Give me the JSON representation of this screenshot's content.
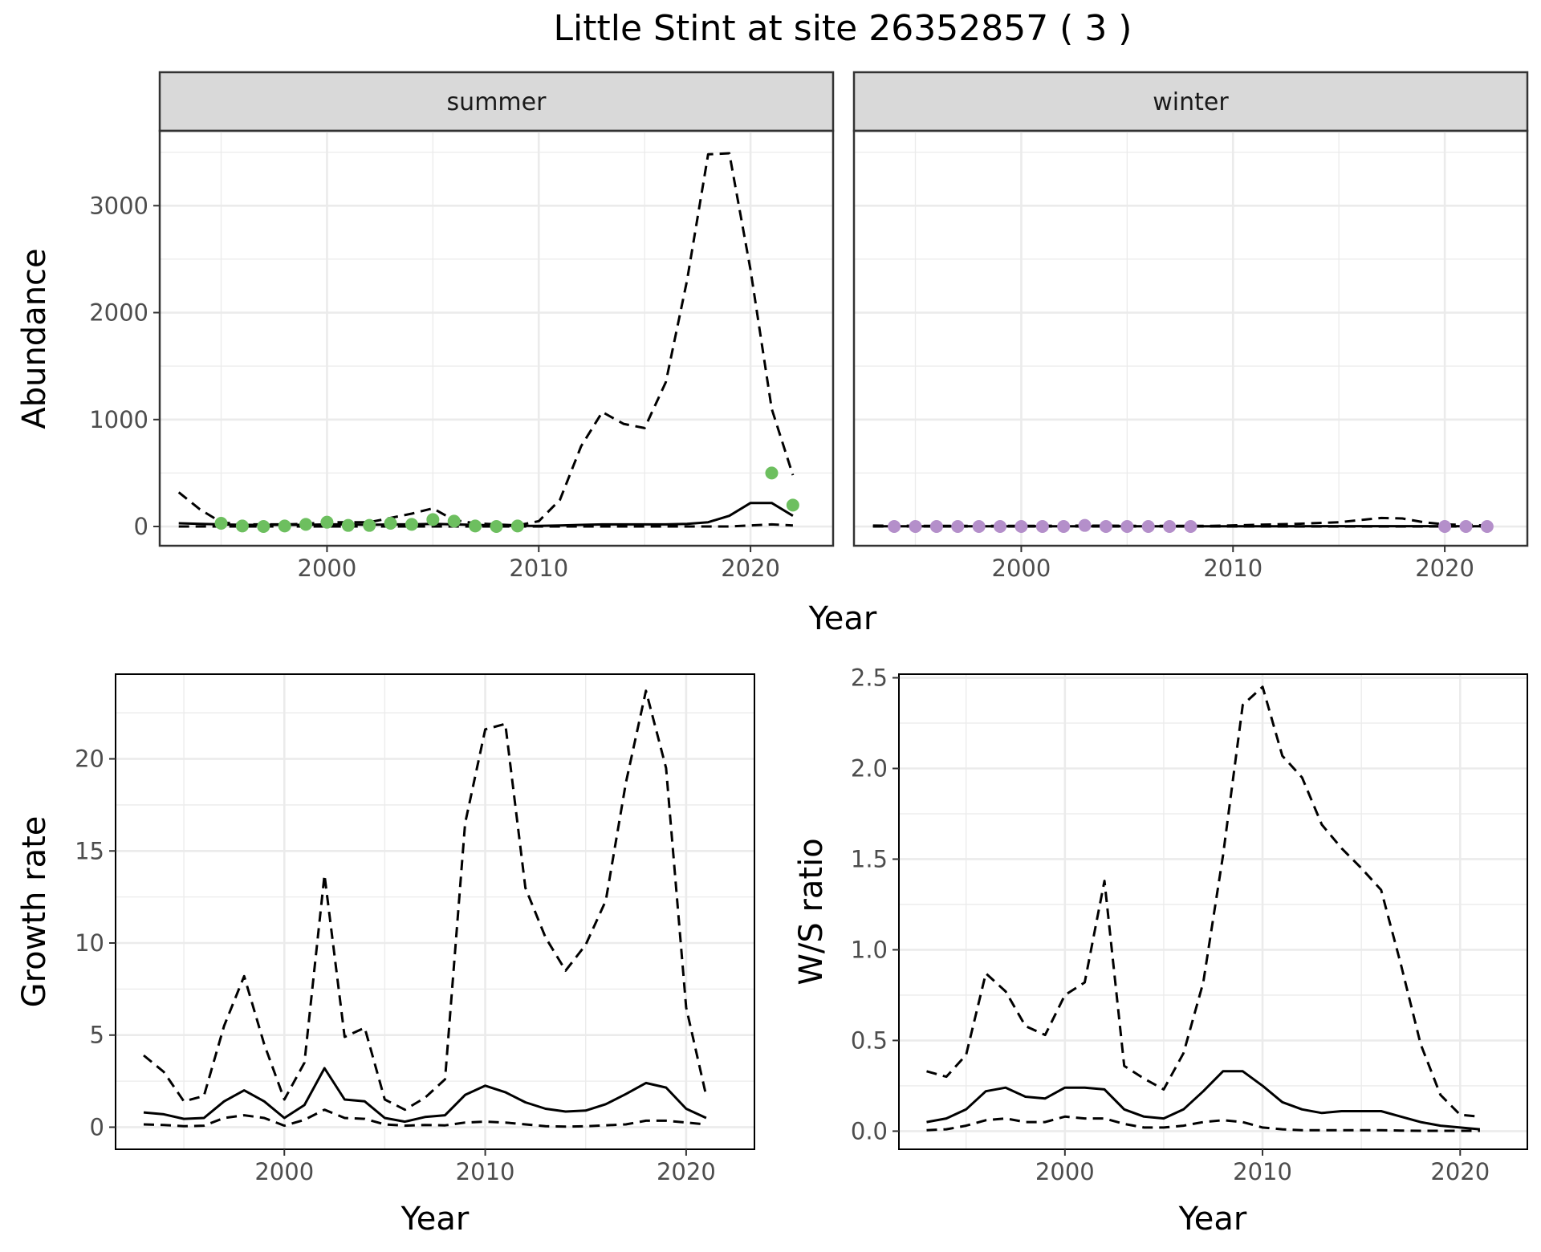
{
  "title": "Little Stint at site 26352857 ( 3 )",
  "colors": {
    "summer_points": "#6dbf5f",
    "winter_points": "#b48fca",
    "lines": "#000000",
    "panel_border": "#333333",
    "strip_fill": "#d9d9d9",
    "grid": "#ebebeb"
  },
  "chart_data": [
    {
      "id": "abundance",
      "type": "line",
      "facets": [
        "summer",
        "winter"
      ],
      "xlabel": "Year",
      "ylabel": "Abundance",
      "xlim": [
        1992.1,
        2023.9
      ],
      "ylim": [
        -180,
        3700
      ],
      "xticks": [
        2000,
        2010,
        2020
      ],
      "yticks": [
        0,
        1000,
        2000,
        3000
      ],
      "grid": true,
      "legend": "none",
      "panels": [
        {
          "name": "summer",
          "point_color": "#6dbf5f",
          "points": {
            "x": [
              1995,
              1996,
              1997,
              1998,
              1999,
              2000,
              2001,
              2002,
              2003,
              2004,
              2005,
              2006,
              2007,
              2008,
              2009,
              2021,
              2022
            ],
            "y": [
              30,
              5,
              0,
              5,
              20,
              40,
              10,
              10,
              30,
              20,
              65,
              50,
              5,
              0,
              5,
              500,
              200
            ]
          },
          "series": [
            {
              "name": "fit",
              "style": "solid",
              "x": [
                1993,
                1994,
                1995,
                1996,
                1997,
                1998,
                1999,
                2000,
                2001,
                2002,
                2003,
                2004,
                2005,
                2006,
                2007,
                2008,
                2009,
                2010,
                2011,
                2012,
                2013,
                2014,
                2015,
                2016,
                2017,
                2018,
                2019,
                2020,
                2021,
                2022
              ],
              "y": [
                30,
                25,
                20,
                15,
                15,
                15,
                15,
                20,
                20,
                15,
                20,
                20,
                25,
                20,
                15,
                10,
                5,
                5,
                10,
                15,
                20,
                20,
                20,
                20,
                25,
                40,
                100,
                220,
                220,
                100
              ]
            },
            {
              "name": "upper",
              "style": "dashed",
              "x": [
                1993,
                1994,
                1995,
                1996,
                1997,
                1998,
                1999,
                2000,
                2001,
                2002,
                2003,
                2004,
                2005,
                2006,
                2007,
                2008,
                2009,
                2010,
                2011,
                2012,
                2013,
                2014,
                2015,
                2016,
                2017,
                2018,
                2019,
                2020,
                2021,
                2022
              ],
              "y": [
                320,
                160,
                40,
                20,
                20,
                20,
                25,
                40,
                40,
                40,
                80,
                120,
                170,
                60,
                30,
                20,
                10,
                50,
                250,
                750,
                1070,
                960,
                920,
                1350,
                2300,
                3480,
                3490,
                2400,
                1100,
                480
              ]
            },
            {
              "name": "lower",
              "style": "dashed",
              "x": [
                1993,
                1994,
                1995,
                1996,
                1997,
                1998,
                1999,
                2000,
                2001,
                2002,
                2003,
                2004,
                2005,
                2006,
                2007,
                2008,
                2009,
                2010,
                2011,
                2012,
                2013,
                2014,
                2015,
                2016,
                2017,
                2018,
                2019,
                2020,
                2021,
                2022
              ],
              "y": [
                0,
                0,
                0,
                0,
                0,
                0,
                0,
                0,
                0,
                0,
                0,
                0,
                0,
                0,
                0,
                0,
                0,
                0,
                0,
                0,
                0,
                0,
                0,
                0,
                0,
                0,
                0,
                10,
                20,
                10
              ]
            }
          ]
        },
        {
          "name": "winter",
          "point_color": "#b48fca",
          "points": {
            "x": [
              1994,
              1995,
              1996,
              1997,
              1998,
              1999,
              2000,
              2001,
              2002,
              2003,
              2004,
              2005,
              2006,
              2007,
              2008,
              2020,
              2021,
              2022
            ],
            "y": [
              0,
              0,
              0,
              0,
              0,
              0,
              0,
              0,
              0,
              10,
              0,
              0,
              0,
              0,
              0,
              0,
              0,
              0
            ]
          },
          "series": [
            {
              "name": "fit",
              "style": "solid",
              "x": [
                1993,
                1996,
                2000,
                2004,
                2008,
                2012,
                2016,
                2019,
                2022
              ],
              "y": [
                2,
                2,
                2,
                2,
                2,
                2,
                3,
                3,
                2
              ]
            },
            {
              "name": "upper",
              "style": "dashed",
              "x": [
                1993,
                1996,
                2000,
                2003,
                2006,
                2009,
                2011,
                2013,
                2015,
                2016,
                2017,
                2018,
                2019,
                2020,
                2022
              ],
              "y": [
                8,
                5,
                5,
                8,
                5,
                5,
                15,
                25,
                40,
                60,
                80,
                75,
                40,
                20,
                10
              ]
            },
            {
              "name": "lower",
              "style": "dashed",
              "x": [
                1993,
                2022
              ],
              "y": [
                0,
                0
              ]
            }
          ]
        }
      ]
    },
    {
      "id": "growth",
      "type": "line",
      "xlabel": "Year",
      "ylabel": "Growth rate",
      "xlim": [
        1991.6,
        2023.4
      ],
      "ylim": [
        -1.2,
        24.6
      ],
      "xticks": [
        2000,
        2010,
        2020
      ],
      "yticks": [
        0,
        5,
        10,
        15,
        20
      ],
      "grid": true,
      "series": [
        {
          "name": "fit",
          "style": "solid",
          "x": [
            1993,
            1994,
            1995,
            1996,
            1997,
            1998,
            1999,
            2000,
            2001,
            2002,
            2003,
            2004,
            2005,
            2006,
            2007,
            2008,
            2009,
            2010,
            2011,
            2012,
            2013,
            2014,
            2015,
            2016,
            2017,
            2018,
            2019,
            2020,
            2021
          ],
          "y": [
            0.8,
            0.7,
            0.45,
            0.5,
            1.4,
            2.0,
            1.4,
            0.5,
            1.2,
            3.2,
            1.5,
            1.4,
            0.5,
            0.3,
            0.55,
            0.65,
            1.75,
            2.25,
            1.9,
            1.35,
            1.0,
            0.85,
            0.9,
            1.25,
            1.8,
            2.4,
            2.15,
            1.0,
            0.5
          ]
        },
        {
          "name": "upper",
          "style": "dashed",
          "x": [
            1993,
            1994,
            1995,
            1996,
            1997,
            1998,
            1999,
            2000,
            2001,
            2002,
            2003,
            2004,
            2005,
            2006,
            2007,
            2008,
            2009,
            2010,
            2011,
            2012,
            2013,
            2014,
            2015,
            2016,
            2017,
            2018,
            2019,
            2020,
            2021
          ],
          "y": [
            3.9,
            3.0,
            1.4,
            1.7,
            5.5,
            8.2,
            4.5,
            1.5,
            3.5,
            13.7,
            4.9,
            5.4,
            1.5,
            0.95,
            1.6,
            2.6,
            16.5,
            21.6,
            21.9,
            13.0,
            10.3,
            8.5,
            9.9,
            12.3,
            18.7,
            23.7,
            19.5,
            6.5,
            1.7
          ]
        },
        {
          "name": "lower",
          "style": "dashed",
          "x": [
            1993,
            1994,
            1995,
            1996,
            1997,
            1998,
            1999,
            2000,
            2001,
            2002,
            2003,
            2004,
            2005,
            2006,
            2007,
            2008,
            2009,
            2010,
            2011,
            2012,
            2013,
            2014,
            2015,
            2016,
            2017,
            2018,
            2019,
            2020,
            2021
          ],
          "y": [
            0.15,
            0.12,
            0.05,
            0.08,
            0.5,
            0.65,
            0.5,
            0.08,
            0.4,
            0.95,
            0.5,
            0.45,
            0.15,
            0.08,
            0.12,
            0.1,
            0.25,
            0.3,
            0.25,
            0.15,
            0.05,
            0.03,
            0.05,
            0.1,
            0.15,
            0.35,
            0.35,
            0.25,
            0.15
          ]
        }
      ]
    },
    {
      "id": "ratio",
      "type": "line",
      "xlabel": "Year",
      "ylabel": "W/S ratio",
      "xlim": [
        1991.6,
        2023.4
      ],
      "ylim": [
        -0.1,
        2.52
      ],
      "xticks": [
        2000,
        2010,
        2020
      ],
      "yticks": [
        0.0,
        0.5,
        1.0,
        1.5,
        2.0,
        2.5
      ],
      "ytick_labels": [
        "0.0",
        "0.5",
        "1.0",
        "1.5",
        "2.0",
        "2.5"
      ],
      "grid": true,
      "series": [
        {
          "name": "fit",
          "style": "solid",
          "x": [
            1993,
            1994,
            1995,
            1996,
            1997,
            1998,
            1999,
            2000,
            2001,
            2002,
            2003,
            2004,
            2005,
            2006,
            2007,
            2008,
            2009,
            2010,
            2011,
            2012,
            2013,
            2014,
            2015,
            2016,
            2017,
            2018,
            2019,
            2020,
            2021
          ],
          "y": [
            0.05,
            0.07,
            0.12,
            0.22,
            0.24,
            0.19,
            0.18,
            0.24,
            0.24,
            0.23,
            0.12,
            0.08,
            0.07,
            0.12,
            0.22,
            0.33,
            0.33,
            0.25,
            0.16,
            0.12,
            0.1,
            0.11,
            0.11,
            0.11,
            0.08,
            0.05,
            0.03,
            0.02,
            0.01
          ]
        },
        {
          "name": "upper",
          "style": "dashed",
          "x": [
            1993,
            1994,
            1995,
            1996,
            1997,
            1998,
            1999,
            2000,
            2001,
            2002,
            2003,
            2004,
            2005,
            2006,
            2007,
            2008,
            2009,
            2010,
            2011,
            2012,
            2013,
            2014,
            2015,
            2016,
            2017,
            2018,
            2019,
            2020,
            2021
          ],
          "y": [
            0.33,
            0.3,
            0.42,
            0.87,
            0.77,
            0.58,
            0.53,
            0.75,
            0.82,
            1.38,
            0.36,
            0.29,
            0.23,
            0.43,
            0.82,
            1.52,
            2.35,
            2.45,
            2.07,
            1.95,
            1.69,
            1.56,
            1.45,
            1.33,
            0.92,
            0.48,
            0.2,
            0.09,
            0.08
          ]
        },
        {
          "name": "lower",
          "style": "dashed",
          "x": [
            1993,
            1994,
            1995,
            1996,
            1997,
            1998,
            1999,
            2000,
            2001,
            2002,
            2003,
            2004,
            2005,
            2006,
            2007,
            2008,
            2009,
            2010,
            2011,
            2012,
            2013,
            2014,
            2015,
            2016,
            2017,
            2018,
            2019,
            2020,
            2021
          ],
          "y": [
            0.005,
            0.01,
            0.03,
            0.06,
            0.07,
            0.05,
            0.05,
            0.08,
            0.07,
            0.07,
            0.04,
            0.02,
            0.02,
            0.03,
            0.05,
            0.06,
            0.05,
            0.02,
            0.01,
            0.005,
            0.005,
            0.005,
            0.005,
            0.005,
            0.003,
            0.002,
            0.002,
            0.002,
            0.002
          ]
        }
      ]
    }
  ]
}
